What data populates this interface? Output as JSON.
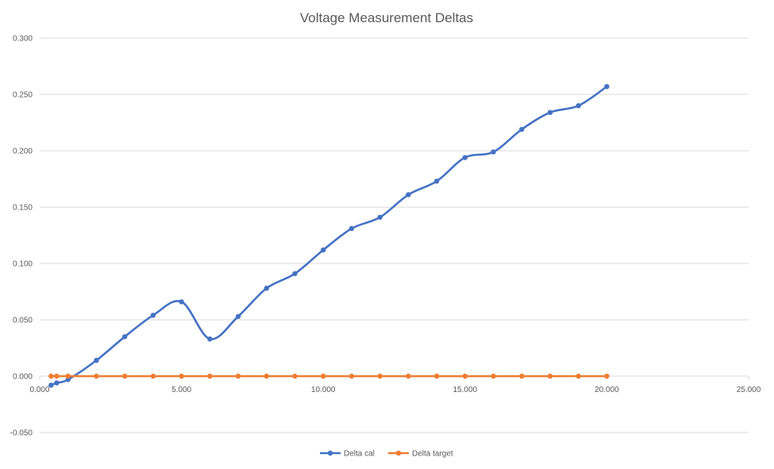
{
  "chart_data": {
    "type": "line",
    "title": "Voltage Measurement Deltas",
    "xlabel": "",
    "ylabel": "",
    "xlim": [
      0,
      25
    ],
    "ylim": [
      -0.05,
      0.3
    ],
    "x_ticks": [
      "0.000",
      "5.000",
      "10.000",
      "15.000",
      "20.000",
      "25.000"
    ],
    "y_ticks": [
      "-0.050",
      "0.000",
      "0.050",
      "0.100",
      "0.150",
      "0.200",
      "0.250",
      "0.300"
    ],
    "grid": "horizontal",
    "smoothed": true,
    "legend_position": "bottom",
    "series": [
      {
        "name": "Delta cal",
        "color": "#4472C4",
        "points": [
          [
            0.4,
            -0.008
          ],
          [
            0.6,
            -0.006
          ],
          [
            1.0,
            -0.003
          ],
          [
            2.0,
            0.014
          ],
          [
            3.0,
            0.035
          ],
          [
            4.0,
            0.054
          ],
          [
            5.0,
            0.066
          ],
          [
            6.0,
            0.033
          ],
          [
            7.0,
            0.053
          ],
          [
            8.0,
            0.078
          ],
          [
            9.0,
            0.091
          ],
          [
            10.0,
            0.112
          ],
          [
            11.0,
            0.131
          ],
          [
            12.0,
            0.141
          ],
          [
            13.0,
            0.161
          ],
          [
            14.0,
            0.173
          ],
          [
            15.0,
            0.194
          ],
          [
            16.0,
            0.199
          ],
          [
            17.0,
            0.219
          ],
          [
            18.0,
            0.234
          ],
          [
            19.0,
            0.24
          ],
          [
            20.0,
            0.257
          ]
        ]
      },
      {
        "name": "Delta target",
        "color": "#ED7D31",
        "points": [
          [
            0.4,
            0
          ],
          [
            0.6,
            0
          ],
          [
            1.0,
            0
          ],
          [
            2.0,
            0
          ],
          [
            3.0,
            0
          ],
          [
            4.0,
            0
          ],
          [
            5.0,
            0
          ],
          [
            6.0,
            0
          ],
          [
            7.0,
            0
          ],
          [
            8.0,
            0
          ],
          [
            9.0,
            0
          ],
          [
            10.0,
            0
          ],
          [
            11.0,
            0
          ],
          [
            12.0,
            0
          ],
          [
            13.0,
            0
          ],
          [
            14.0,
            0
          ],
          [
            15.0,
            0
          ],
          [
            16.0,
            0
          ],
          [
            17.0,
            0
          ],
          [
            18.0,
            0
          ],
          [
            19.0,
            0
          ],
          [
            20.0,
            0
          ]
        ]
      }
    ]
  }
}
